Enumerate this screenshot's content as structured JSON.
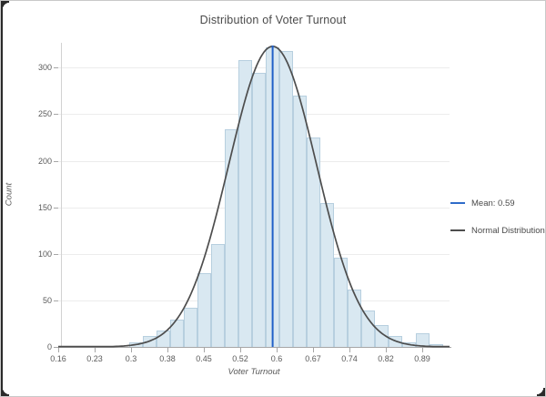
{
  "title": "Distribution of Voter Turnout",
  "x_axis": {
    "label": "Voter Turnout",
    "tick_labels": [
      "0.16",
      "0.23",
      "0.3",
      "0.38",
      "0.45",
      "0.52",
      "0.6",
      "0.67",
      "0.74",
      "0.82",
      "0.89"
    ]
  },
  "y_axis": {
    "label": "Count",
    "tick_labels": [
      "0",
      "50",
      "100",
      "150",
      "200",
      "250",
      "300"
    ],
    "tick_values": [
      0,
      50,
      100,
      150,
      200,
      250,
      300
    ]
  },
  "legend": [
    {
      "label": "Mean: 0.59",
      "color": "#2f6bc9",
      "type": "line"
    },
    {
      "label": "Normal Distribution",
      "color": "#4d4d4d",
      "type": "line"
    }
  ],
  "colors": {
    "bar_fill": "#d9e8f1",
    "bar_border": "#b7cfdf",
    "curve": "#4d4d4d",
    "mean_line": "#2060c8",
    "gridline": "#ececec",
    "axis": "#a6a6a6",
    "text": "#5a5a5a",
    "title_text": "#4a4a4a"
  },
  "chart_data": {
    "type": "histogram+line",
    "title": "Distribution of Voter Turnout",
    "xlabel": "Voter Turnout",
    "ylabel": "Count",
    "x_tick_values": [
      0.16,
      0.23,
      0.3,
      0.38,
      0.45,
      0.52,
      0.6,
      0.67,
      0.74,
      0.82,
      0.89
    ],
    "xlim": [
      0.155,
      0.945
    ],
    "ylim": [
      0,
      327
    ],
    "grid": true,
    "legend_position": "right",
    "bin_edges": [
      0.3029,
      0.3303,
      0.3576,
      0.385,
      0.4124,
      0.4398,
      0.4672,
      0.4945,
      0.5219,
      0.5493,
      0.5767,
      0.6041,
      0.6314,
      0.6588,
      0.6862,
      0.7136,
      0.741,
      0.7683,
      0.7957,
      0.8231,
      0.8505,
      0.8779,
      0.9052,
      0.9326
    ],
    "counts": [
      5,
      12,
      18,
      29,
      42,
      79,
      111,
      234,
      308,
      295,
      322,
      318,
      270,
      225,
      155,
      96,
      62,
      39,
      24,
      12,
      5,
      15,
      3
    ],
    "mean_line": {
      "value": 0.59,
      "label": "Mean: 0.59"
    },
    "normal_curve": {
      "mean": 0.59,
      "sigma": 0.088,
      "peak_count": 323,
      "label": "Normal Distribution"
    }
  }
}
